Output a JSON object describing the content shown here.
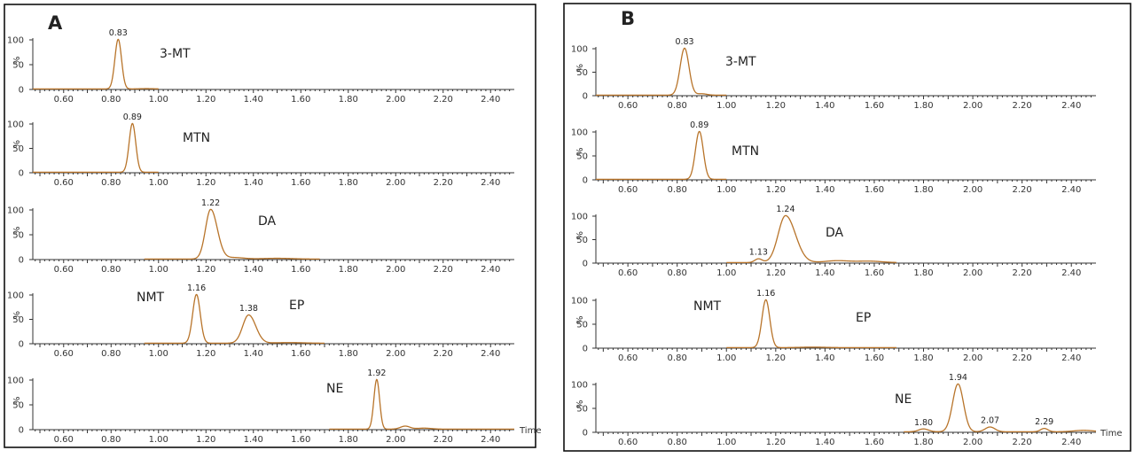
{
  "chart_data": [
    {
      "type": "line",
      "panel": "A",
      "xlim": [
        0.47,
        2.5
      ],
      "x_ticks": [
        "0.60",
        "0.80",
        "1.00",
        "1.20",
        "1.40",
        "1.60",
        "1.80",
        "2.00",
        "2.20",
        "2.40"
      ],
      "x_tick_values": [
        0.6,
        0.8,
        1.0,
        1.2,
        1.4,
        1.6,
        1.8,
        2.0,
        2.2,
        2.4
      ],
      "xlabel": "Time",
      "y_ticks": [
        "0",
        "50",
        "100"
      ],
      "ylabel": "%",
      "ylim": [
        0,
        100
      ],
      "traces": [
        {
          "compounds": [
            "3-MT"
          ],
          "range": [
            0.47,
            1.0
          ],
          "peaks": [
            {
              "x": 0.83,
              "label": "0.83",
              "height": 100,
              "width": 0.014
            }
          ],
          "humps": [
            {
              "x": 0.95,
              "height": 0.6,
              "width": 0.03
            }
          ]
        },
        {
          "compounds": [
            "MTN"
          ],
          "range": [
            0.47,
            1.0
          ],
          "peaks": [
            {
              "x": 0.89,
              "label": "0.89",
              "height": 100,
              "width": 0.014
            }
          ],
          "humps": []
        },
        {
          "compounds": [
            "DA"
          ],
          "range": [
            0.94,
            1.68
          ],
          "peaks": [
            {
              "x": 1.22,
              "label": "1.22",
              "height": 100,
              "width": 0.022,
              "tail": 0.028
            }
          ],
          "humps": [
            {
              "x": 1.32,
              "height": 3,
              "width": 0.04
            },
            {
              "x": 1.5,
              "height": 1.5,
              "width": 0.06
            }
          ]
        },
        {
          "compounds": [
            "NMT",
            "EP"
          ],
          "range": [
            0.94,
            1.7
          ],
          "peaks": [
            {
              "x": 1.16,
              "label": "1.16",
              "height": 100,
              "width": 0.016
            },
            {
              "x": 1.38,
              "label": "1.38",
              "height": 58,
              "width": 0.025,
              "tail": 0.03
            }
          ],
          "humps": [
            {
              "x": 1.55,
              "height": 1.2,
              "width": 0.06
            }
          ]
        },
        {
          "compounds": [
            "NE"
          ],
          "range": [
            1.72,
            2.5
          ],
          "peaks": [
            {
              "x": 1.92,
              "label": "1.92",
              "height": 100,
              "width": 0.012
            }
          ],
          "humps": [
            {
              "x": 2.04,
              "height": 6,
              "width": 0.02
            },
            {
              "x": 2.12,
              "height": 2,
              "width": 0.03
            }
          ]
        }
      ]
    },
    {
      "type": "line",
      "panel": "B",
      "xlim": [
        0.47,
        2.5
      ],
      "x_ticks": [
        "0.60",
        "0.80",
        "1.00",
        "1.20",
        "1.40",
        "1.60",
        "1.80",
        "2.00",
        "2.20",
        "2.40"
      ],
      "x_tick_values": [
        0.6,
        0.8,
        1.0,
        1.2,
        1.4,
        1.6,
        1.8,
        2.0,
        2.2,
        2.4
      ],
      "xlabel": "Time",
      "y_ticks": [
        "0",
        "50",
        "100"
      ],
      "ylabel": "%",
      "ylim": [
        0,
        100
      ],
      "traces": [
        {
          "compounds": [
            "3-MT"
          ],
          "range": [
            0.47,
            1.0
          ],
          "peaks": [
            {
              "x": 0.83,
              "label": "0.83",
              "height": 100,
              "width": 0.018
            }
          ],
          "humps": [
            {
              "x": 0.9,
              "height": 3,
              "width": 0.02
            }
          ]
        },
        {
          "compounds": [
            "MTN"
          ],
          "range": [
            0.47,
            1.0
          ],
          "peaks": [
            {
              "x": 0.89,
              "label": "0.89",
              "height": 100,
              "width": 0.016
            }
          ],
          "humps": []
        },
        {
          "compounds": [
            "DA"
          ],
          "range": [
            1.0,
            1.69
          ],
          "peaks": [
            {
              "x": 1.13,
              "label": "1.13",
              "height": 8,
              "width": 0.015
            },
            {
              "x": 1.24,
              "label": "1.24",
              "height": 100,
              "width": 0.03,
              "tail": 0.04
            }
          ],
          "humps": [
            {
              "x": 1.45,
              "height": 4,
              "width": 0.05
            },
            {
              "x": 1.58,
              "height": 3,
              "width": 0.05
            }
          ]
        },
        {
          "compounds": [
            "NMT",
            "EP"
          ],
          "range": [
            1.0,
            1.69
          ],
          "peaks": [
            {
              "x": 1.16,
              "label": "1.16",
              "height": 100,
              "width": 0.016
            }
          ],
          "humps": [
            {
              "x": 1.35,
              "height": 1,
              "width": 0.05
            }
          ]
        },
        {
          "compounds": [
            "NE"
          ],
          "range": [
            1.72,
            2.5
          ],
          "peaks": [
            {
              "x": 1.8,
              "label": "1.80",
              "height": 6,
              "width": 0.02
            },
            {
              "x": 1.94,
              "label": "1.94",
              "height": 100,
              "width": 0.022
            },
            {
              "x": 2.07,
              "label": "2.07",
              "height": 10,
              "width": 0.02
            },
            {
              "x": 2.29,
              "label": "2.29",
              "height": 7,
              "width": 0.015
            }
          ],
          "humps": [
            {
              "x": 2.45,
              "height": 3,
              "width": 0.04
            }
          ]
        }
      ]
    }
  ]
}
